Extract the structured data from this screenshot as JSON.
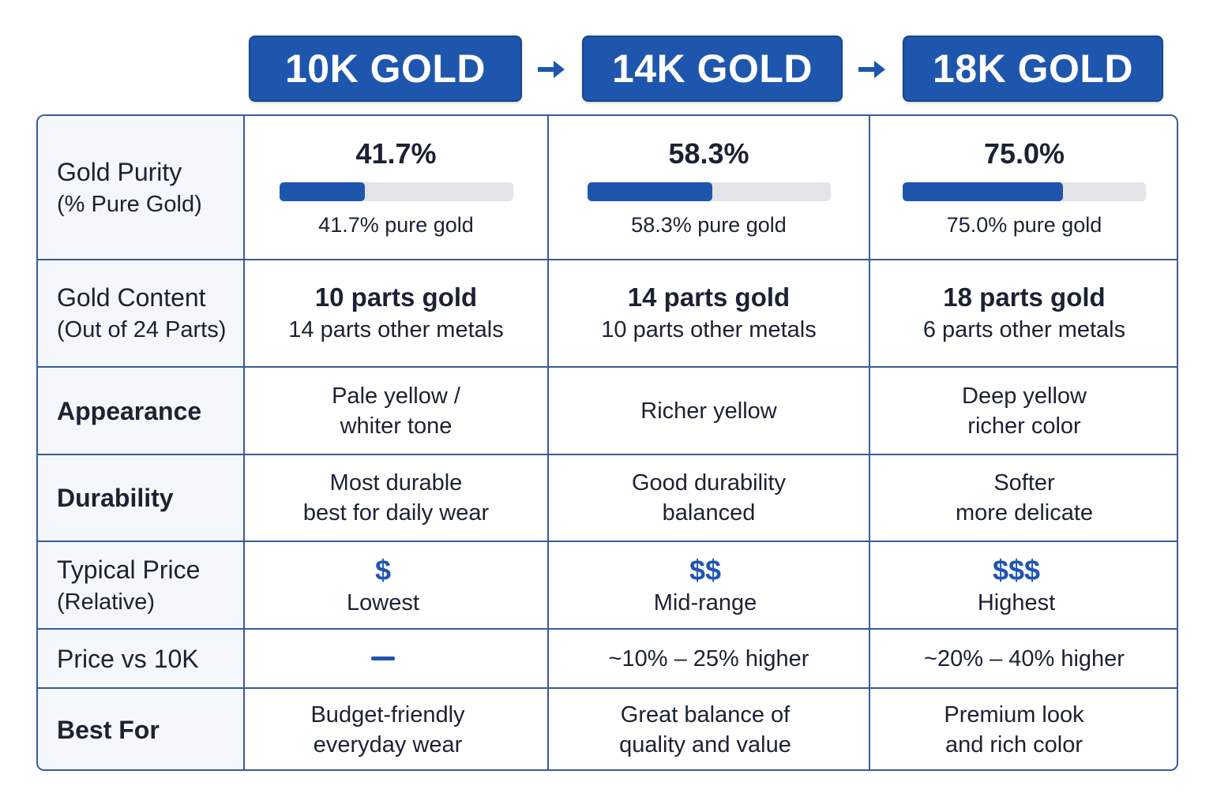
{
  "headers": [
    "10K GOLD",
    "14K GOLD",
    "18K GOLD"
  ],
  "colors": {
    "accent": "#1f56ad",
    "border": "#3a5a9a",
    "bar_track": "#e2e4e8"
  },
  "rows": {
    "purity": {
      "label": "Gold Purity",
      "sublabel": "(% Pure Gold)",
      "cells": [
        {
          "value": "41.7%",
          "fraction": 0.417,
          "caption": "41.7% pure gold"
        },
        {
          "value": "58.3%",
          "fraction": 0.583,
          "caption": "58.3% pure gold"
        },
        {
          "value": "75.0%",
          "fraction": 0.75,
          "caption": "75.0% pure gold"
        }
      ]
    },
    "content": {
      "label": "Gold Content",
      "sublabel": "(Out of 24 Parts)",
      "cells": [
        {
          "main": "10 parts gold",
          "sub": "14 parts other metals"
        },
        {
          "main": "14 parts gold",
          "sub": "10 parts other metals"
        },
        {
          "main": "18 parts gold",
          "sub": "6 parts other metals"
        }
      ]
    },
    "appearance": {
      "label": "Appearance",
      "cells": [
        {
          "line1": "Pale yellow /",
          "line2": "whiter tone"
        },
        {
          "line1": "Richer yellow",
          "line2": ""
        },
        {
          "line1": "Deep yellow",
          "line2": "richer color"
        }
      ]
    },
    "durability": {
      "label": "Durability",
      "cells": [
        {
          "line1": "Most durable",
          "line2": "best for daily wear"
        },
        {
          "line1": "Good durability",
          "line2": "balanced"
        },
        {
          "line1": "Softer",
          "line2": "more delicate"
        }
      ]
    },
    "price": {
      "label": "Typical Price",
      "sublabel": "(Relative)",
      "cells": [
        {
          "symbol": "$",
          "text": "Lowest"
        },
        {
          "symbol": "$$",
          "text": "Mid-range"
        },
        {
          "symbol": "$$$",
          "text": "Highest"
        }
      ]
    },
    "vs10k": {
      "label": "Price vs 10K",
      "cells": [
        {
          "text": ""
        },
        {
          "text": "~10% – 25% higher"
        },
        {
          "text": "~20% – 40% higher"
        }
      ]
    },
    "bestfor": {
      "label": "Best For",
      "cells": [
        {
          "line1": "Budget-friendly",
          "line2": "everyday wear"
        },
        {
          "line1": "Great balance of",
          "line2": "quality and value"
        },
        {
          "line1": "Premium look",
          "line2": "and rich color"
        }
      ]
    }
  }
}
